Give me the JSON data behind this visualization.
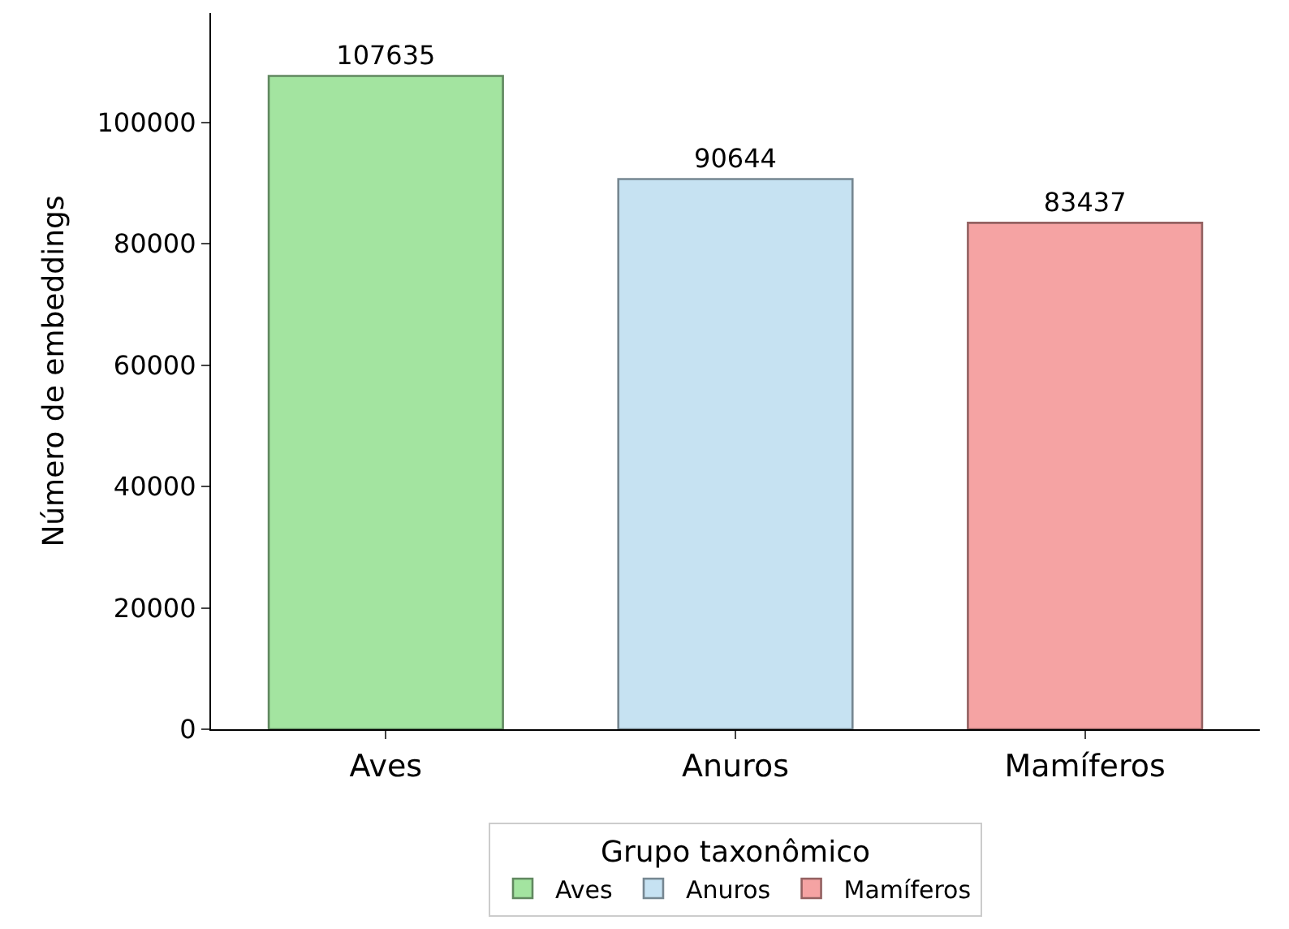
{
  "chart_data": {
    "type": "bar",
    "ylabel": "Número de embeddings",
    "legend_title": "Grupo taxonômico",
    "categories": [
      "Aves",
      "Anuros",
      "Mamíferos"
    ],
    "series": [
      {
        "name": "Aves",
        "color": "#a3e4a0",
        "values": [
          107635,
          null,
          null
        ]
      },
      {
        "name": "Anuros",
        "color": "#c6e2f2",
        "values": [
          null,
          90644,
          null
        ]
      },
      {
        "name": "Mamíferos",
        "color": "#f5a3a3",
        "values": [
          null,
          null,
          83437
        ]
      }
    ],
    "data_labels": true,
    "legend": "bottom",
    "ylim": [
      0,
      118000
    ],
    "yticks": [
      0,
      20000,
      40000,
      60000,
      80000,
      100000
    ]
  }
}
